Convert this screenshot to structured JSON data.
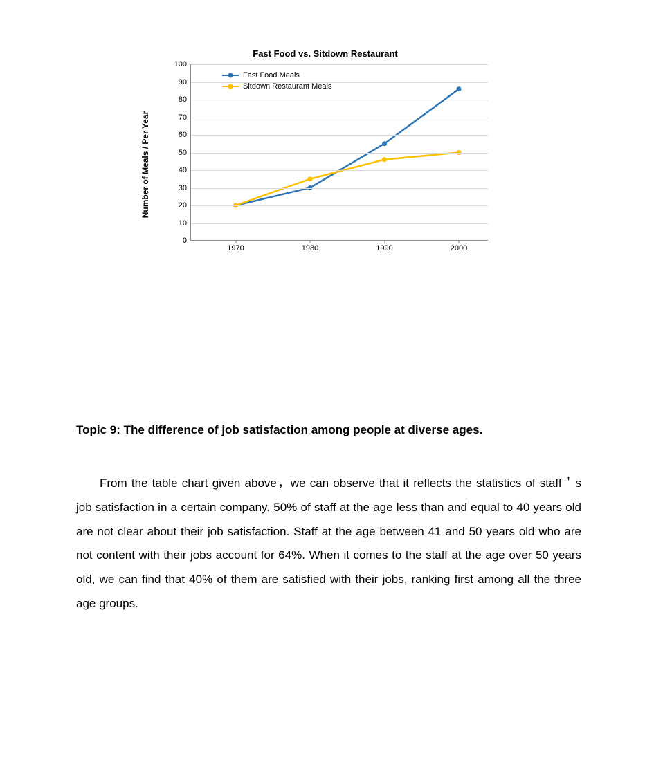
{
  "chart": {
    "type": "line",
    "title": "Fast Food vs. Sitdown Restaurant",
    "title_fontsize": 13,
    "y_axis_label": "Number of Meals / Per Year",
    "categories": [
      "1970",
      "1980",
      "1990",
      "2000"
    ],
    "x_positions_pct": [
      15,
      40,
      65,
      90
    ],
    "ylim": [
      0,
      100
    ],
    "ytick_step": 10,
    "y_ticks": [
      0,
      10,
      20,
      30,
      40,
      50,
      60,
      70,
      80,
      90,
      100
    ],
    "grid_color": "#d9d9d9",
    "axis_color": "#888888",
    "background_color": "#ffffff",
    "series": [
      {
        "name": "Fast Food Meals",
        "color": "#2e75b6",
        "line_width": 2.5,
        "marker_size": 7,
        "values": [
          20,
          30,
          55,
          86
        ]
      },
      {
        "name": "Sitdown Restaurant Meals",
        "color": "#ffc000",
        "line_width": 2.5,
        "marker_size": 7,
        "values": [
          20,
          35,
          46,
          50
        ]
      }
    ],
    "legend_position": "top-left-inside"
  },
  "topic": {
    "heading": "Topic 9: The difference of job satisfaction among people at diverse ages.",
    "paragraph": "From the table chart given above，we can observe that it reflects the statistics of staff＇s job satisfaction in a certain company. 50% of staff at the age less than and equal to 40 years old are not clear about their job satisfaction. Staff at the age between 41 and 50 years old who are not content with their jobs account for 64%. When it comes to the staff at the age over 50 years old, we can find that 40% of them are satisfied with their jobs, ranking first among all the three age groups."
  }
}
